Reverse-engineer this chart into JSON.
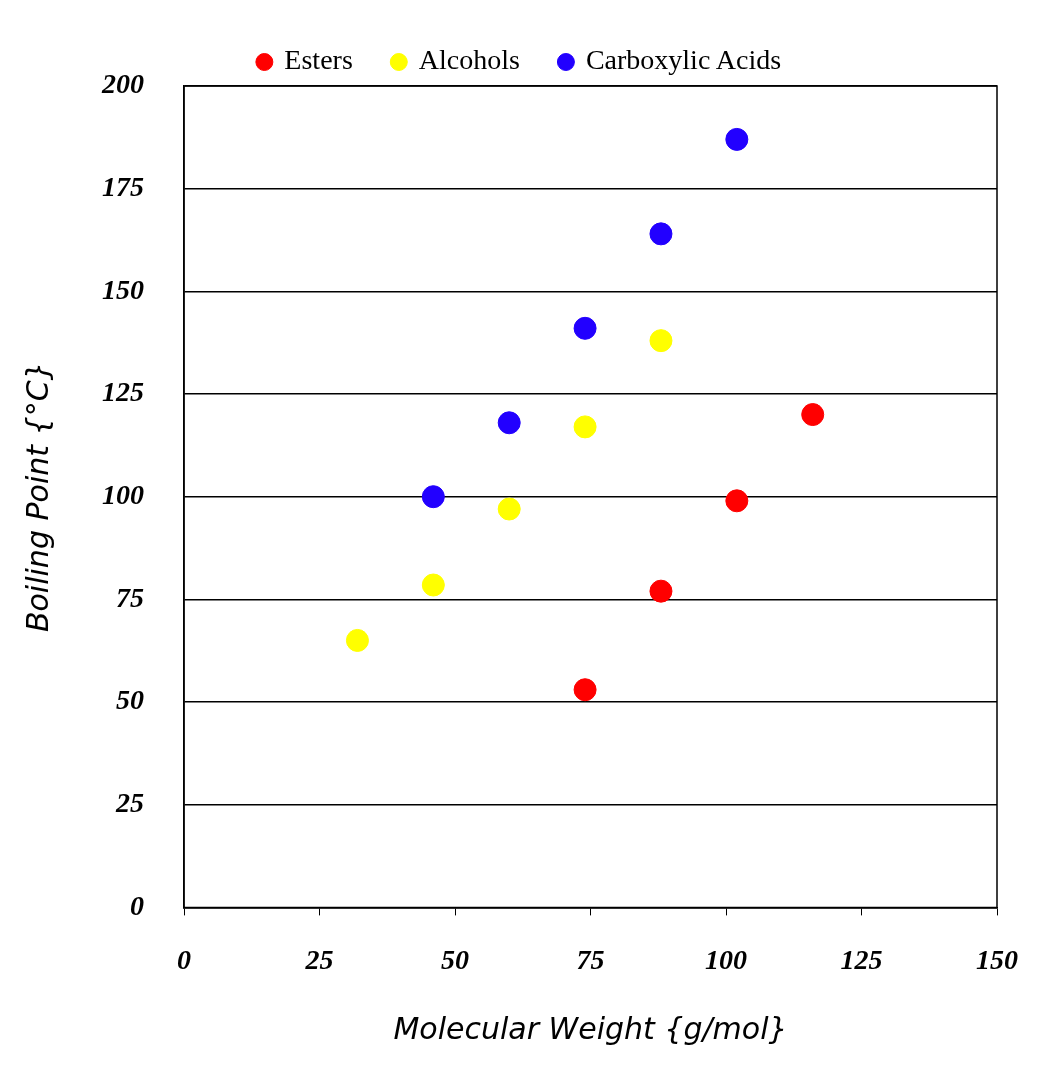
{
  "chart_data": {
    "type": "scatter",
    "xlabel": "Molecular Weight {g/mol}",
    "ylabel": "Boiling Point {°C}",
    "xlim": [
      0,
      150
    ],
    "xticks": [
      0,
      25,
      50,
      75,
      100,
      125,
      150
    ],
    "ylim": [
      0,
      200
    ],
    "yticks": [
      0,
      25,
      50,
      75,
      100,
      125,
      150,
      175,
      200
    ],
    "grid": "y",
    "legend": "top",
    "marker": "circle",
    "series": [
      {
        "name": "Esters",
        "color": "#ff0000",
        "x": [
          74,
          88,
          102,
          116
        ],
        "values": [
          53,
          77,
          99,
          120
        ]
      },
      {
        "name": "Alcohols",
        "color": "#ffff00",
        "x": [
          32,
          46,
          60,
          74,
          88
        ],
        "values": [
          65,
          78.5,
          97,
          117,
          138
        ]
      },
      {
        "name": "Carboxylic Acids",
        "color": "#2200ff",
        "x": [
          46,
          60,
          74,
          88,
          102
        ],
        "values": [
          100,
          118,
          141,
          164,
          187
        ]
      }
    ]
  }
}
